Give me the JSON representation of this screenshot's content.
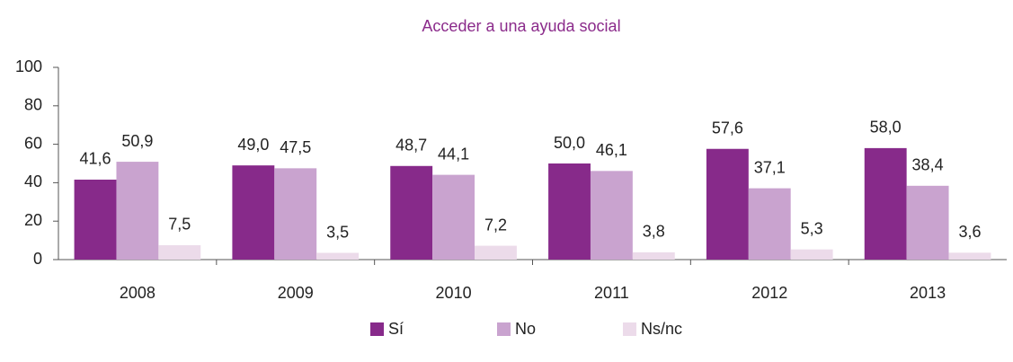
{
  "chart_data": {
    "type": "bar",
    "title": "Acceder a una ayuda social",
    "categories": [
      "2008",
      "2009",
      "2010",
      "2011",
      "2012",
      "2013"
    ],
    "series": [
      {
        "name": "Sí",
        "color": "#872a8a",
        "values": [
          41.6,
          49.0,
          48.7,
          50.0,
          57.6,
          58.0
        ],
        "value_labels": [
          "41,6",
          "49,0",
          "48,7",
          "50,0",
          "57,6",
          "58,0"
        ]
      },
      {
        "name": "No",
        "color": "#c9a3cf",
        "values": [
          50.9,
          47.5,
          44.1,
          46.1,
          37.1,
          38.4
        ],
        "value_labels": [
          "50,9",
          "47,5",
          "44,1",
          "46,1",
          "37,1",
          "38,4"
        ]
      },
      {
        "name": "Ns/nc",
        "color": "#ecdbea",
        "values": [
          7.5,
          3.5,
          7.2,
          3.8,
          5.3,
          3.6
        ],
        "value_labels": [
          "7,5",
          "3,5",
          "7,2",
          "3,8",
          "5,3",
          "3,6"
        ]
      }
    ],
    "ylim": [
      0,
      100
    ],
    "yticks": [
      0,
      20,
      40,
      60,
      80,
      100
    ],
    "grid": false,
    "legend": "bottom"
  }
}
